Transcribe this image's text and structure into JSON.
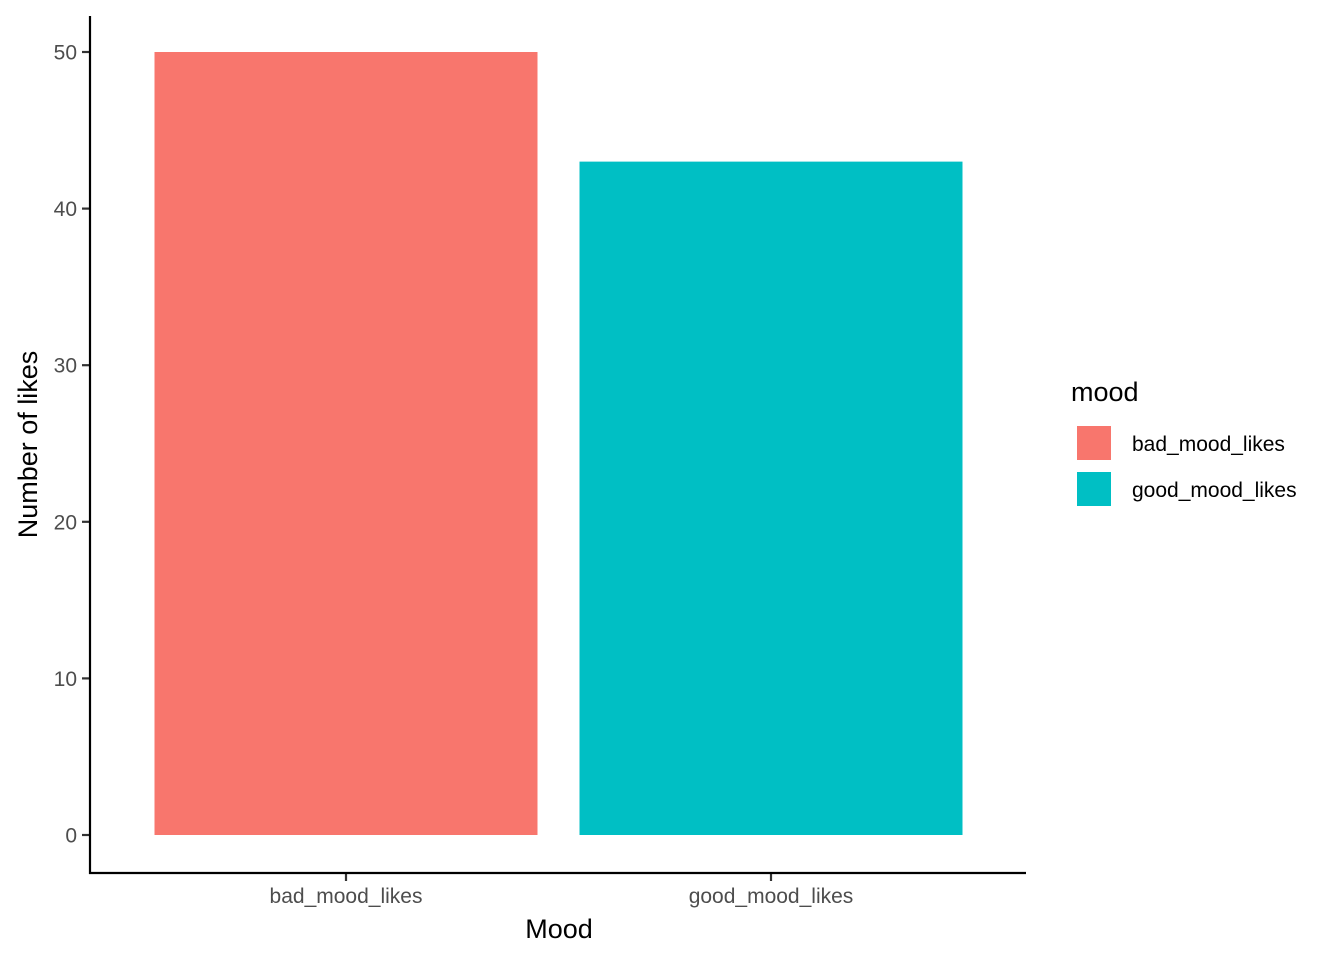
{
  "chart_data": {
    "type": "bar",
    "categories": [
      "bad_mood_likes",
      "good_mood_likes"
    ],
    "values": [
      50,
      43
    ],
    "colors": [
      "#F8766D",
      "#00BFC4"
    ],
    "xlabel": "Mood",
    "ylabel": "Number of likes",
    "ylim": [
      0,
      52.5
    ],
    "yticks": [
      0,
      10,
      20,
      30,
      40,
      50
    ],
    "grid": false,
    "legend": {
      "title": "mood",
      "placement": "right",
      "entries": [
        "bad_mood_likes",
        "good_mood_likes"
      ]
    }
  }
}
